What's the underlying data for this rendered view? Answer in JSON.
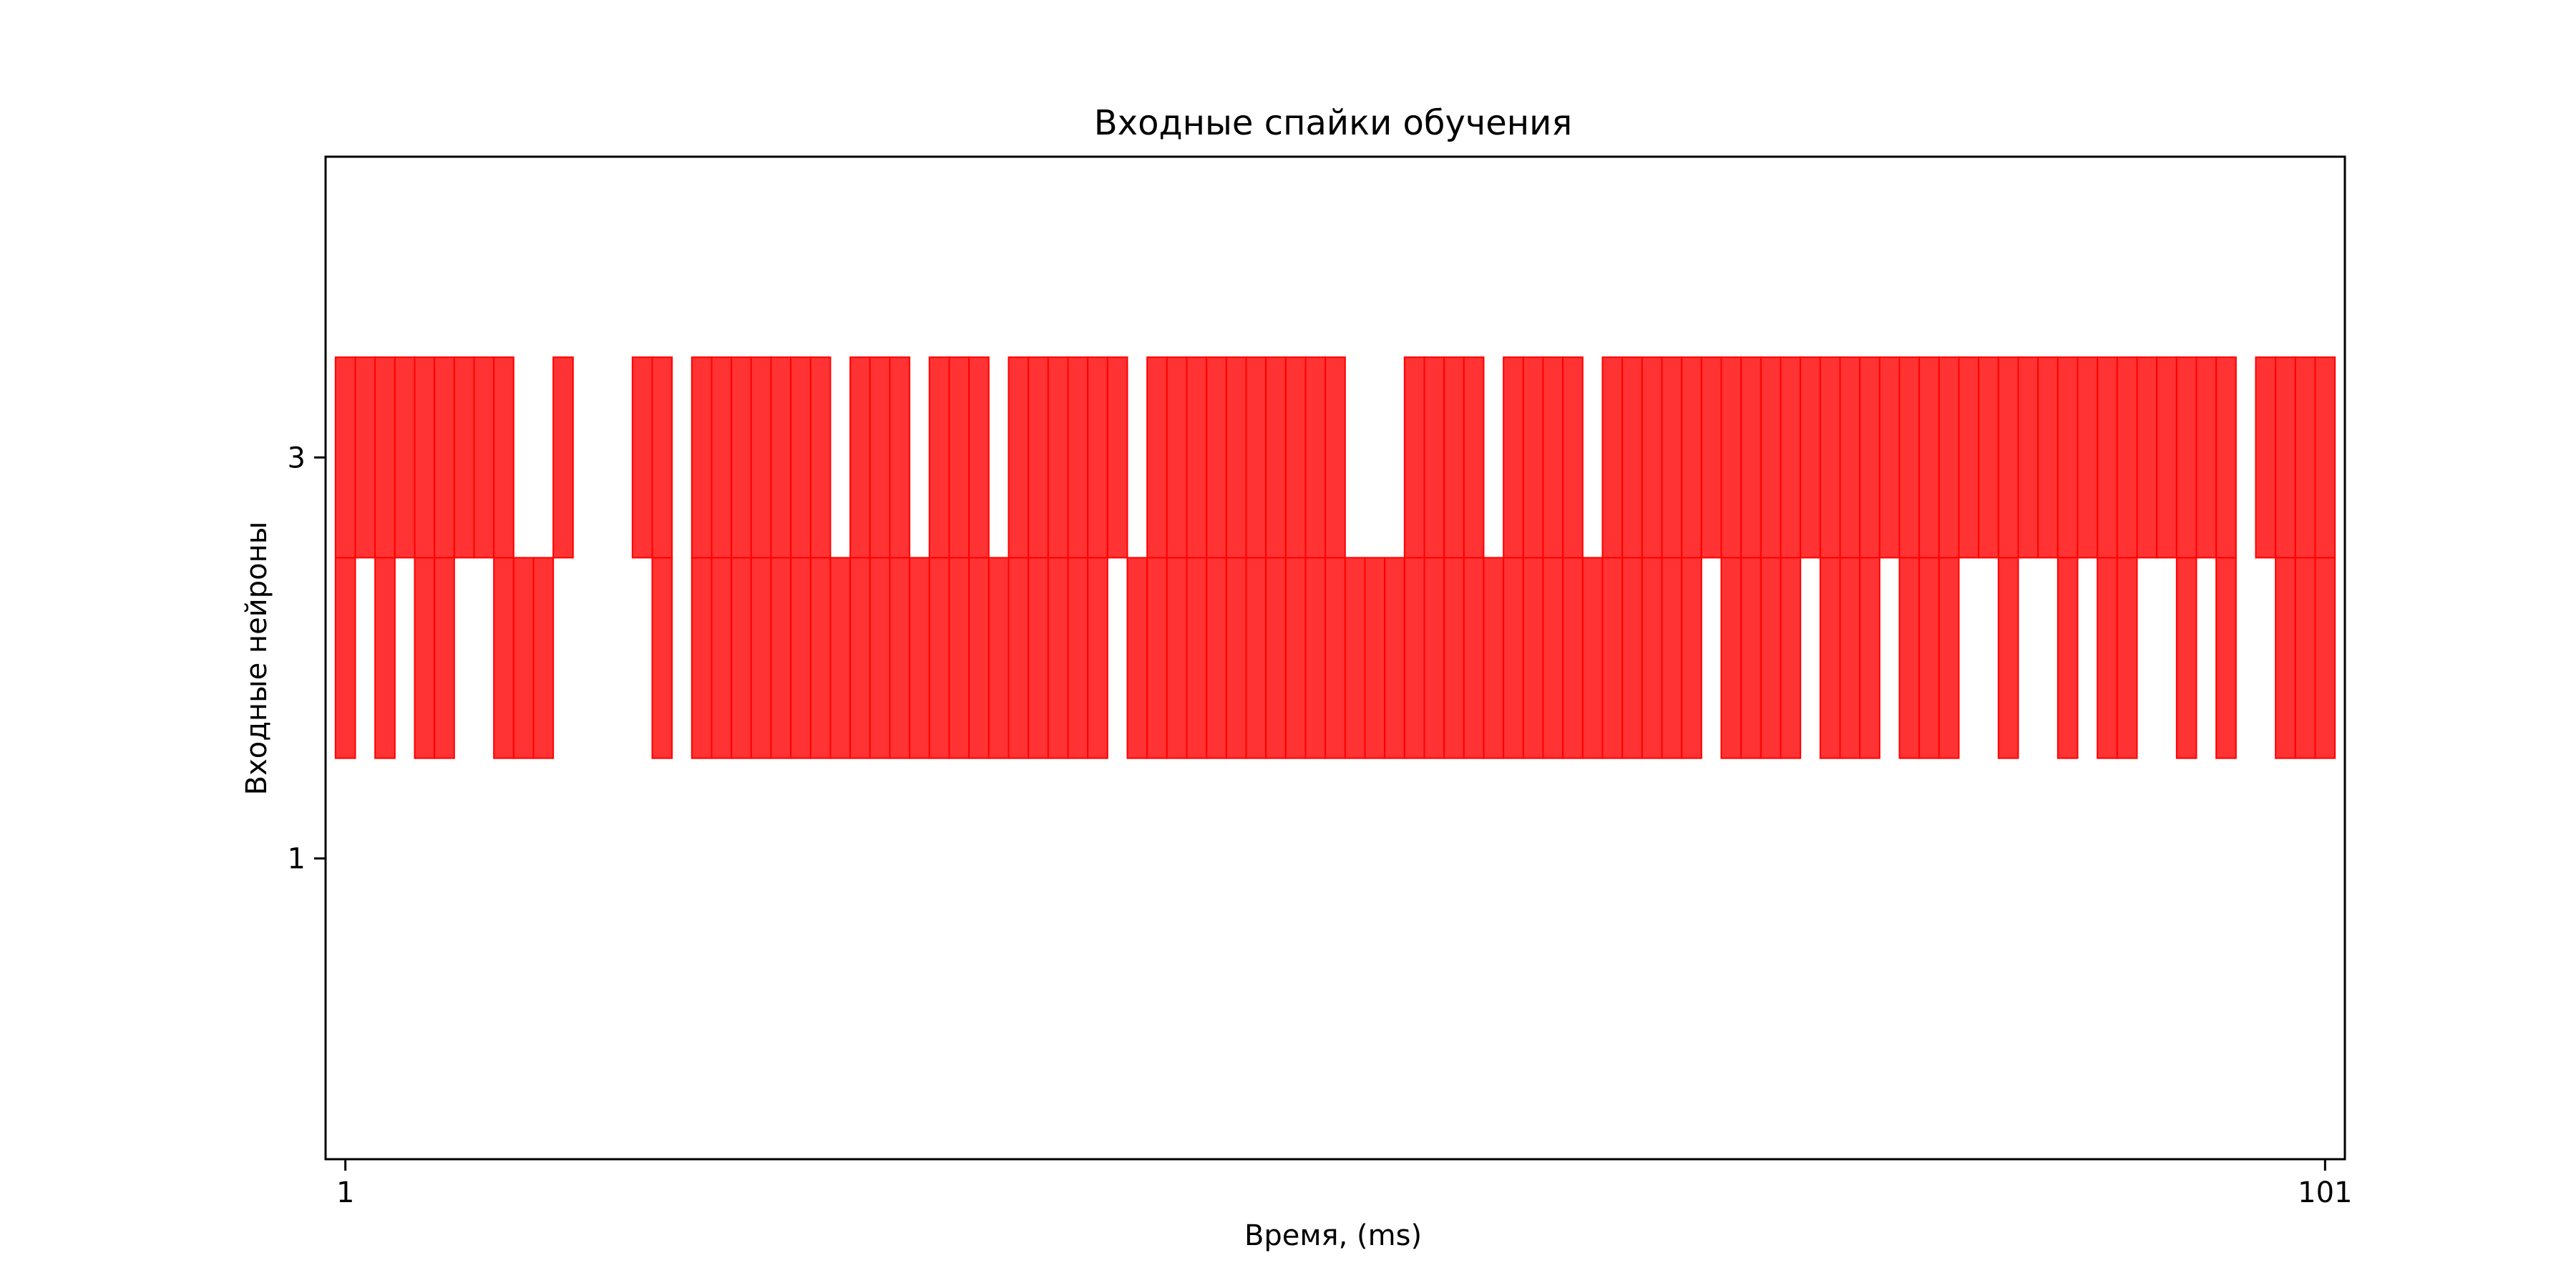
{
  "chart_data": {
    "type": "raster",
    "title": "Входные спайки обучения",
    "xlabel": "Время, (ms)",
    "ylabel": "Входные нейроны",
    "xlim": [
      0,
      102
    ],
    "ylim": [
      -0.5,
      4.5
    ],
    "xticks": [
      1,
      101
    ],
    "xtick_labels": [
      "1",
      "101"
    ],
    "yticks": [
      1,
      3
    ],
    "ytick_labels": [
      "1",
      "3"
    ],
    "bar_color": "#ff0000",
    "bar_fill": "#ff3333",
    "grid": false,
    "legend": "none",
    "series": [
      {
        "neuron": 2,
        "spike_times": [
          1,
          3,
          5,
          6,
          9,
          10,
          11,
          17,
          19,
          20,
          21,
          22,
          23,
          24,
          25,
          26,
          27,
          28,
          29,
          30,
          31,
          32,
          33,
          34,
          35,
          36,
          37,
          38,
          39,
          41,
          42,
          43,
          44,
          45,
          46,
          47,
          48,
          49,
          50,
          51,
          52,
          53,
          54,
          55,
          56,
          57,
          58,
          59,
          60,
          61,
          62,
          63,
          64,
          65,
          66,
          67,
          68,
          69,
          71,
          72,
          73,
          74,
          76,
          77,
          78,
          80,
          81,
          82,
          85,
          88,
          90,
          91,
          94,
          96,
          99,
          100,
          101
        ]
      },
      {
        "neuron": 3,
        "spike_times": [
          1,
          2,
          3,
          4,
          5,
          6,
          7,
          8,
          9,
          12,
          16,
          17,
          19,
          20,
          21,
          22,
          23,
          24,
          25,
          27,
          28,
          29,
          31,
          32,
          33,
          35,
          36,
          37,
          38,
          39,
          40,
          42,
          43,
          44,
          45,
          46,
          47,
          48,
          49,
          50,
          51,
          55,
          56,
          57,
          58,
          60,
          61,
          62,
          63,
          65,
          66,
          67,
          68,
          69,
          70,
          71,
          72,
          73,
          74,
          75,
          76,
          77,
          78,
          79,
          80,
          81,
          82,
          83,
          84,
          85,
          86,
          87,
          88,
          89,
          90,
          91,
          92,
          93,
          94,
          95,
          96,
          98,
          99,
          100,
          101
        ]
      }
    ]
  }
}
